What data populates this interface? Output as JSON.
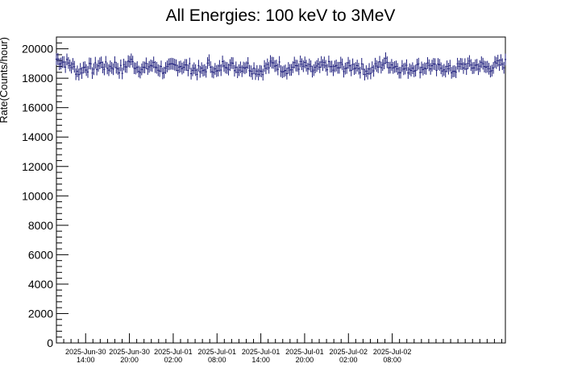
{
  "chart_data": {
    "type": "scatter",
    "title": "All Energies:  100 keV to 3MeV",
    "xlabel": "",
    "ylabel": "Rate(Counts/hour)",
    "ylim": [
      0,
      20800
    ],
    "x_range_hours": [
      0,
      61.5
    ],
    "x_ticks": [
      {
        "date": "2025-Jun-30",
        "time": "14:00",
        "hours": 4
      },
      {
        "date": "2025-Jun-30",
        "time": "20:00",
        "hours": 10
      },
      {
        "date": "2025-Jul-01",
        "time": "02:00",
        "hours": 16
      },
      {
        "date": "2025-Jul-01",
        "time": "08:00",
        "hours": 22
      },
      {
        "date": "2025-Jul-01",
        "time": "14:00",
        "hours": 28
      },
      {
        "date": "2025-Jul-01",
        "time": "20:00",
        "hours": 34
      },
      {
        "date": "2025-Jul-02",
        "time": "02:00",
        "hours": 40
      },
      {
        "date": "2025-Jul-02",
        "time": "08:00",
        "hours": 46
      }
    ],
    "y_ticks": [
      0,
      2000,
      4000,
      6000,
      8000,
      10000,
      12000,
      14000,
      16000,
      18000,
      20000
    ],
    "grid": false,
    "marker_color": "#1a1a7a",
    "series": [
      {
        "mean_rate": 18700,
        "error_bar": 400,
        "x": [
          0,
          1,
          2,
          3,
          4,
          5,
          6,
          7,
          8,
          9,
          10,
          11,
          12,
          13,
          14,
          15,
          16,
          17,
          18,
          19,
          20,
          21,
          22,
          23,
          24,
          25,
          26,
          27,
          28,
          29,
          30,
          31,
          32,
          33,
          34,
          35,
          36,
          37,
          38,
          39,
          40,
          41,
          42,
          43,
          44,
          45,
          46,
          47,
          48,
          49,
          50,
          51,
          52,
          53,
          54,
          55,
          56,
          57,
          58,
          59,
          60,
          61
        ],
        "y": [
          19300,
          19100,
          18900,
          18400,
          18800,
          18600,
          19000,
          18700,
          18900,
          18500,
          19200,
          18800,
          18600,
          18900,
          18700,
          18500,
          18800,
          18900,
          18700,
          18600,
          18400,
          19000,
          18300,
          19100,
          18800,
          18700,
          18900,
          18600,
          18500,
          18800,
          19000,
          18700,
          18600,
          18900,
          18800,
          18500,
          18700,
          18900,
          18600,
          18800,
          18700,
          18900,
          18600,
          18500,
          18800,
          19100,
          18900,
          18700,
          18600,
          18800,
          18700,
          18900,
          18600,
          18800,
          18500,
          18700,
          18900,
          18800,
          18900,
          18700,
          18800,
          19000
        ]
      }
    ]
  }
}
